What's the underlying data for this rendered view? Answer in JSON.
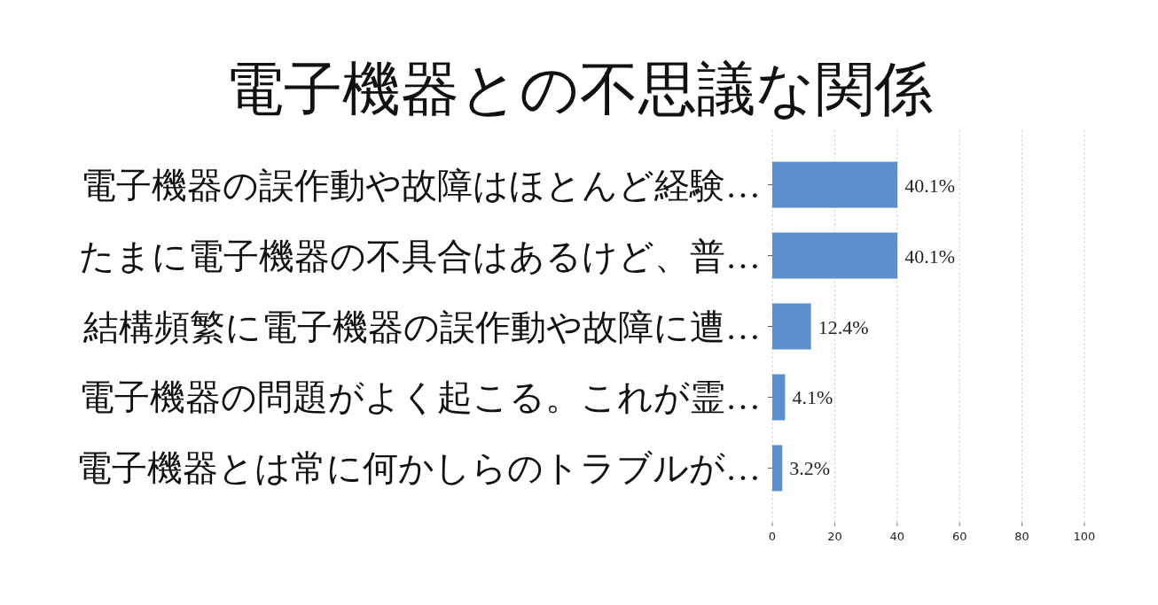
{
  "chart_data": {
    "type": "bar",
    "orientation": "horizontal",
    "title": "電子機器との不思議な関係",
    "categories": [
      "電子機器の誤作動や故障はほとんど経験…",
      "たまに電子機器の不具合はあるけど、普…",
      "結構頻繁に電子機器の誤作動や故障に遭…",
      "電子機器の問題がよく起こる。これが霊…",
      "電子機器とは常に何かしらのトラブルが…"
    ],
    "values": [
      40.1,
      40.1,
      12.4,
      4.1,
      3.2
    ],
    "color": "#5b8fd0",
    "value_labels": [
      "40.1%",
      "40.1%",
      "12.4%",
      "4.1%",
      "3.2%"
    ],
    "xlim": [
      0,
      100
    ],
    "xticks": [
      0,
      20,
      40,
      60,
      80,
      100
    ],
    "grid": "x"
  }
}
